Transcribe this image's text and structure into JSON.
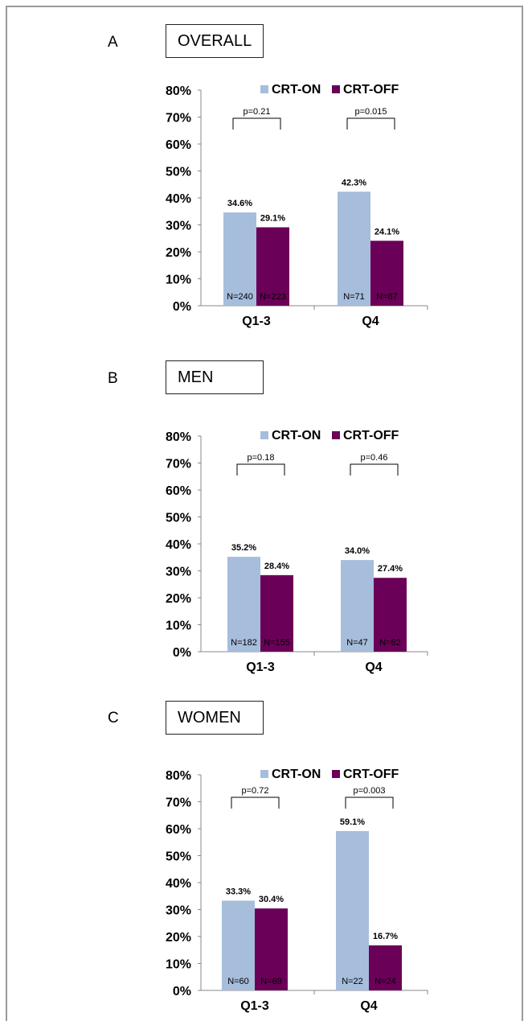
{
  "colors": {
    "on": "#a6bddb",
    "off": "#6b0058"
  },
  "chart_data": [
    {
      "type": "bar",
      "panel_letter": "A",
      "title": "OVERALL",
      "categories": [
        "Q1-3",
        "Q4"
      ],
      "ylim": [
        0,
        80
      ],
      "yticks": [
        "0%",
        "10%",
        "20%",
        "30%",
        "40%",
        "50%",
        "60%",
        "70%",
        "80%"
      ],
      "legend": "top-right",
      "series": [
        {
          "name": "CRT-ON",
          "values": [
            34.6,
            42.3
          ],
          "value_labels": [
            "34.6%",
            "42.3%"
          ],
          "n_labels": [
            "N=240",
            "N=71"
          ]
        },
        {
          "name": "CRT-OFF",
          "values": [
            29.1,
            24.1
          ],
          "value_labels": [
            "29.1%",
            "24.1%"
          ],
          "n_labels": [
            "N=223",
            "N=87"
          ]
        }
      ],
      "p_values": [
        "p=0.21",
        "p=0.015"
      ]
    },
    {
      "type": "bar",
      "panel_letter": "B",
      "title": "MEN",
      "categories": [
        "Q1-3",
        "Q4"
      ],
      "ylim": [
        0,
        80
      ],
      "yticks": [
        "0%",
        "10%",
        "20%",
        "30%",
        "40%",
        "50%",
        "60%",
        "70%",
        "80%"
      ],
      "legend": "top-right",
      "series": [
        {
          "name": "CRT-ON",
          "values": [
            35.2,
            34.0
          ],
          "value_labels": [
            "35.2%",
            "34.0%"
          ],
          "n_labels": [
            "N=182",
            "N=47"
          ]
        },
        {
          "name": "CRT-OFF",
          "values": [
            28.4,
            27.4
          ],
          "value_labels": [
            "28.4%",
            "27.4%"
          ],
          "n_labels": [
            "N=155",
            "N=62"
          ]
        }
      ],
      "p_values": [
        "p=0.18",
        "p=0.46"
      ]
    },
    {
      "type": "bar",
      "panel_letter": "C",
      "title": "WOMEN",
      "categories": [
        "Q1-3",
        "Q4"
      ],
      "ylim": [
        0,
        80
      ],
      "yticks": [
        "0%",
        "10%",
        "20%",
        "30%",
        "40%",
        "50%",
        "60%",
        "70%",
        "80%"
      ],
      "legend": "top-right",
      "series": [
        {
          "name": "CRT-ON",
          "values": [
            33.3,
            59.1
          ],
          "value_labels": [
            "33.3%",
            "59.1%"
          ],
          "n_labels": [
            "N=60",
            "N=22"
          ]
        },
        {
          "name": "CRT-OFF",
          "values": [
            30.4,
            16.7
          ],
          "value_labels": [
            "30.4%",
            "16.7%"
          ],
          "n_labels": [
            "N=69",
            "N=24"
          ]
        }
      ],
      "p_values": [
        "p=0.72",
        "p=0.003"
      ]
    }
  ]
}
